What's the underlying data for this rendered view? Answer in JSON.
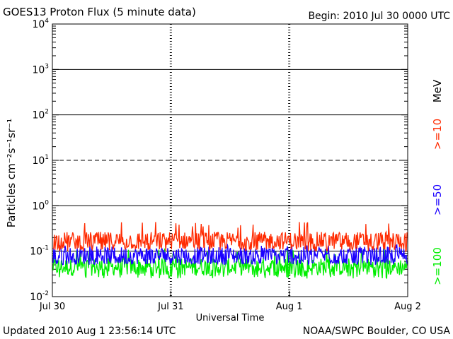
{
  "header": {
    "title": "GOES13 Proton Flux (5 minute data)",
    "begin": "Begin: 2010 Jul 30 0000 UTC"
  },
  "footer": {
    "updated": "Updated 2010 Aug  1 23:56:14 UTC",
    "source": "NOAA/SWPC Boulder, CO USA"
  },
  "colors": {
    "ge10": "#ff2a00",
    "ge50": "#1a00ff",
    "ge100": "#00ee00",
    "axes": "#000000",
    "background": "#ffffff"
  },
  "chart_data": {
    "type": "line",
    "title": "GOES13 Proton Flux (5 minute data)",
    "xlabel": "Universal Time",
    "ylabel": "Particles cm⁻²s⁻¹sr⁻¹",
    "yscale": "log",
    "ylim": [
      0.01,
      10000
    ],
    "x_ticks": [
      "Jul 30",
      "Jul 31",
      "Aug 1",
      "Aug 2"
    ],
    "y_ticks": [
      {
        "base": "10",
        "exp": "4"
      },
      {
        "base": "10",
        "exp": "3"
      },
      {
        "base": "10",
        "exp": "2"
      },
      {
        "base": "10",
        "exp": "1"
      },
      {
        "base": "10",
        "exp": "0"
      },
      {
        "base": "10",
        "exp": "-1"
      },
      {
        "base": "10",
        "exp": "-2"
      }
    ],
    "energy_unit": "MeV",
    "grid": "horizontal lines at each decade (10^1 dashed), dashed vertical day markers",
    "series": [
      {
        "name": ">=10",
        "color": "#ff2a00",
        "typical": 0.17,
        "min": 0.1,
        "max": 0.45
      },
      {
        "name": ">=50",
        "color": "#1a00ff",
        "typical": 0.08,
        "min": 0.05,
        "max": 0.15
      },
      {
        "name": ">=100",
        "color": "#00ee00",
        "typical": 0.045,
        "min": 0.025,
        "max": 0.12
      }
    ]
  }
}
